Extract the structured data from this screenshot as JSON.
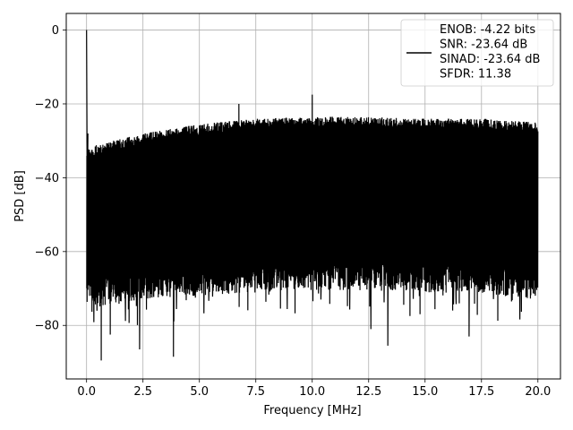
{
  "chart_data": {
    "type": "line",
    "title": "",
    "xlabel": "Frequency [MHz]",
    "ylabel": "PSD [dB]",
    "xlim": [
      -0.9,
      21.0
    ],
    "ylim": [
      -94.5,
      4.5
    ],
    "xticks": [
      0.0,
      2.5,
      5.0,
      7.5,
      10.0,
      12.5,
      15.0,
      17.5,
      20.0
    ],
    "xtick_labels": [
      "0.0",
      "2.5",
      "5.0",
      "7.5",
      "10.0",
      "12.5",
      "15.0",
      "17.5",
      "20.0"
    ],
    "yticks": [
      0,
      -20,
      -40,
      -60,
      -80
    ],
    "ytick_labels": [
      "0",
      "−20",
      "−40",
      "−60",
      "−80"
    ],
    "grid": true,
    "legend_position": "upper right",
    "line_color": "#000000",
    "series": [
      {
        "name": "ENOB: -4.22 bits\nSNR: -23.64 dB\nSINAD: -23.64 dB\nSFDR: 11.38",
        "legend_lines": [
          "ENOB: -4.22 bits",
          "SNR: -23.64 dB",
          "SINAD: -23.64 dB",
          "SFDR: 11.38"
        ],
        "description": "dense noise-floor power spectral density from 0 to 20 MHz",
        "upper_envelope": {
          "x": [
            0.0,
            0.1,
            0.5,
            2.5,
            5.0,
            7.5,
            10.0,
            12.5,
            15.0,
            17.5,
            20.0
          ],
          "y": [
            -32,
            -32,
            -31,
            -28,
            -25.5,
            -24,
            -23.5,
            -23.5,
            -24,
            -24,
            -25
          ]
        },
        "lower_envelope": {
          "x": [
            0.0,
            0.5,
            2.5,
            5.0,
            7.5,
            10.0,
            12.5,
            15.0,
            17.5,
            20.0
          ],
          "y": [
            -70,
            -70,
            -68,
            -67,
            -66,
            -65.5,
            -65.5,
            -66,
            -66.5,
            -68
          ]
        },
        "peaks": [
          {
            "x": 0.0,
            "y": 0.0
          },
          {
            "x": 6.75,
            "y": -20.0
          },
          {
            "x": 10.0,
            "y": -17.5
          }
        ],
        "dips": [
          {
            "x": 0.65,
            "y": -89.5
          },
          {
            "x": 1.05,
            "y": -82.5
          },
          {
            "x": 2.35,
            "y": -86.5
          },
          {
            "x": 3.85,
            "y": -88.5
          },
          {
            "x": 12.6,
            "y": -81.0
          },
          {
            "x": 13.35,
            "y": -85.5
          },
          {
            "x": 16.95,
            "y": -83.0
          }
        ]
      }
    ]
  }
}
